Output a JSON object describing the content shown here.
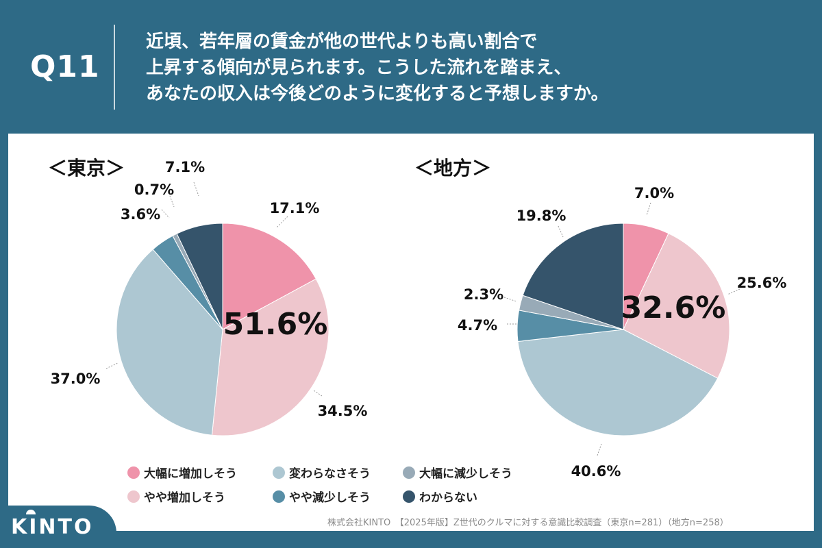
{
  "header": {
    "question_label": "Q11",
    "question_lines": [
      "近頃、若年層の賃金が他の世代よりも高い割合で",
      "上昇する傾向が見られます。こうした流れを踏まえ、",
      "あなたの収入は今後どのように変化すると予想しますか。"
    ]
  },
  "colors": {
    "background": "#2e6a86",
    "大幅に増加しそう": "#ef93aa",
    "やや増加しそう": "#eec6cd",
    "変わらなさそう": "#adc7d2",
    "やや減少しそう": "#578ea6",
    "大幅に減少しそう": "#98aab7",
    "わからない": "#35546b"
  },
  "legend": [
    {
      "label": "大幅に増加しそう",
      "color": "#ef93aa"
    },
    {
      "label": "変わらなさそう",
      "color": "#adc7d2"
    },
    {
      "label": "大幅に減少しそう",
      "color": "#98aab7"
    },
    {
      "label": "やや増加しそう",
      "color": "#eec6cd"
    },
    {
      "label": "やや減少しそう",
      "color": "#578ea6"
    },
    {
      "label": "わからない",
      "color": "#35546b"
    }
  ],
  "chart_data": [
    {
      "type": "pie",
      "title": "＜東京＞",
      "highlight": "51.6%",
      "slices": [
        {
          "label": "大幅に増加しそう",
          "value": 17.1,
          "text": "17.1%"
        },
        {
          "label": "やや増加しそう",
          "value": 34.5,
          "text": "34.5%"
        },
        {
          "label": "変わらなさそう",
          "value": 37.0,
          "text": "37.0%"
        },
        {
          "label": "やや減少しそう",
          "value": 3.6,
          "text": "3.6%"
        },
        {
          "label": "大幅に減少しそう",
          "value": 0.7,
          "text": "0.7%"
        },
        {
          "label": "わからない",
          "value": 7.1,
          "text": "7.1%"
        }
      ]
    },
    {
      "type": "pie",
      "title": "＜地方＞",
      "highlight": "32.6%",
      "slices": [
        {
          "label": "大幅に増加しそう",
          "value": 7.0,
          "text": "7.0%"
        },
        {
          "label": "やや増加しそう",
          "value": 25.6,
          "text": "25.6%"
        },
        {
          "label": "変わらなさそう",
          "value": 40.6,
          "text": "40.6%"
        },
        {
          "label": "やや減少しそう",
          "value": 4.7,
          "text": "4.7%"
        },
        {
          "label": "大幅に減少しそう",
          "value": 2.3,
          "text": "2.3%"
        },
        {
          "label": "わからない",
          "value": 19.8,
          "text": "19.8%"
        }
      ]
    }
  ],
  "source": "株式会社KINTO　【2025年版】Z世代のクルマに対する意識比較調査（東京n=281）（地方n=258）",
  "logo": "KINTO"
}
